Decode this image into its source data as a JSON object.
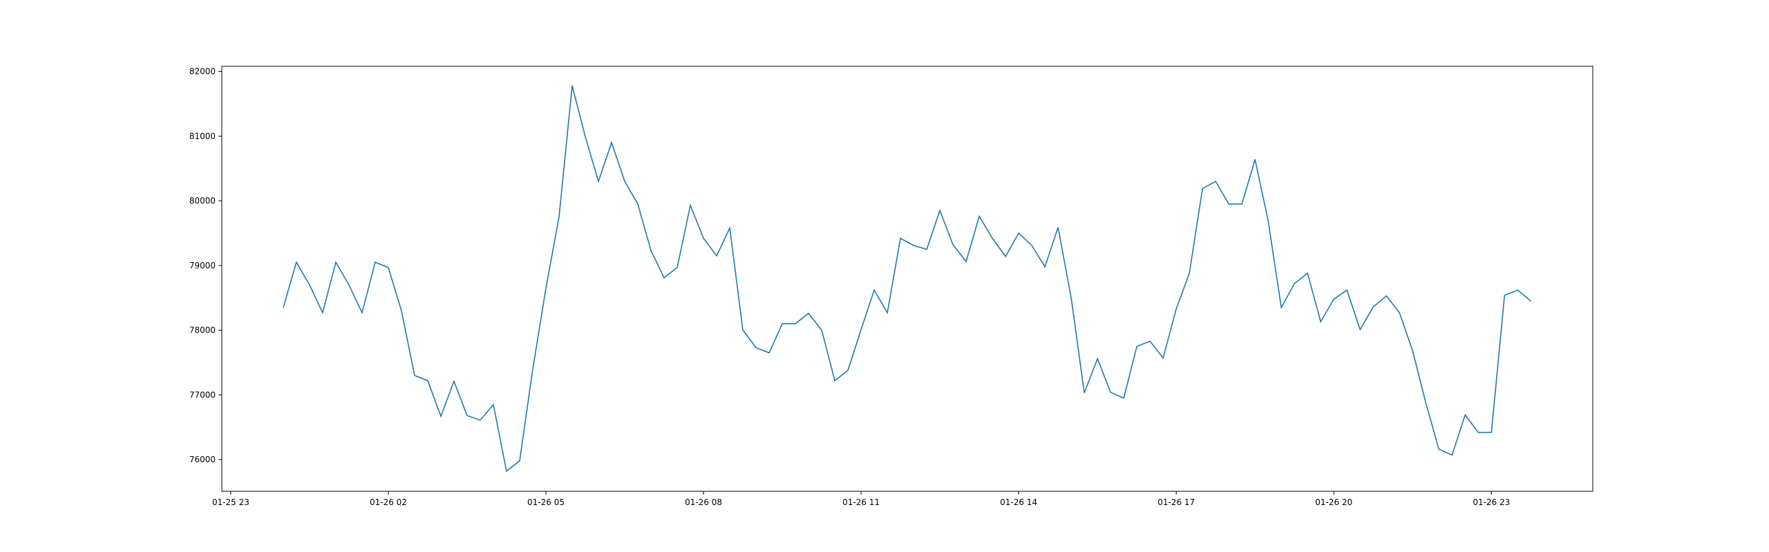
{
  "chart_data": {
    "type": "line",
    "title": "",
    "xlabel": "",
    "ylabel": "",
    "line_color": "#1f77b4",
    "grid": false,
    "legend": false,
    "x_ticks": [
      {
        "value": -1.0,
        "label": "01-25 23"
      },
      {
        "value": 2.0,
        "label": "01-26 02"
      },
      {
        "value": 5.0,
        "label": "01-26 05"
      },
      {
        "value": 8.0,
        "label": "01-26 08"
      },
      {
        "value": 11.0,
        "label": "01-26 11"
      },
      {
        "value": 14.0,
        "label": "01-26 14"
      },
      {
        "value": 17.0,
        "label": "01-26 17"
      },
      {
        "value": 20.0,
        "label": "01-26 20"
      },
      {
        "value": 23.0,
        "label": "01-26 23"
      }
    ],
    "y_ticks": [
      {
        "value": 76000,
        "label": "76000"
      },
      {
        "value": 77000,
        "label": "77000"
      },
      {
        "value": 78000,
        "label": "78000"
      },
      {
        "value": 79000,
        "label": "79000"
      },
      {
        "value": 80000,
        "label": "80000"
      },
      {
        "value": 81000,
        "label": "81000"
      },
      {
        "value": 82000,
        "label": "82000"
      }
    ],
    "xlim": [
      -1.17,
      24.93
    ],
    "ylim": [
      75510,
      82080
    ],
    "series": [
      {
        "x": [
          0.0,
          0.25,
          0.5,
          0.75,
          1.0,
          1.25,
          1.5,
          1.75,
          2.0,
          2.25,
          2.5,
          2.75,
          3.0,
          3.25,
          3.5,
          3.75,
          4.0,
          4.25,
          4.5,
          4.75,
          5.0,
          5.25,
          5.5,
          5.75,
          6.0,
          6.25,
          6.5,
          6.75,
          7.0,
          7.25,
          7.5,
          7.75,
          8.0,
          8.25,
          8.5,
          8.75,
          9.0,
          9.25,
          9.5,
          9.75,
          10.0,
          10.25,
          10.5,
          10.75,
          11.0,
          11.25,
          11.5,
          11.75,
          12.0,
          12.25,
          12.5,
          12.75,
          13.0,
          13.25,
          13.5,
          13.75,
          14.0,
          14.25,
          14.5,
          14.75,
          15.0,
          15.25,
          15.5,
          15.75,
          16.0,
          16.25,
          16.5,
          16.75,
          17.0,
          17.25,
          17.5,
          17.75,
          18.0,
          18.25,
          18.5,
          18.75,
          19.0,
          19.25,
          19.5,
          19.75,
          20.0,
          20.25,
          20.5,
          20.75,
          21.0,
          21.25,
          21.5,
          21.75,
          22.0,
          22.25,
          22.5,
          22.75,
          23.0,
          23.25,
          23.5,
          23.75
        ],
        "y": [
          78350,
          79050,
          78700,
          78270,
          79050,
          78700,
          78270,
          79050,
          78970,
          78300,
          77300,
          77220,
          76670,
          77210,
          76680,
          76610,
          76850,
          75820,
          75980,
          77400,
          78650,
          79750,
          81780,
          80990,
          80300,
          80900,
          80300,
          79950,
          79230,
          78810,
          78970,
          79930,
          79420,
          79150,
          79580,
          78000,
          77730,
          77650,
          78100,
          78100,
          78260,
          78000,
          77220,
          77380,
          78010,
          78620,
          78270,
          79420,
          79310,
          79250,
          79850,
          79320,
          79060,
          79760,
          79420,
          79140,
          79500,
          79310,
          78980,
          79590,
          78500,
          77030,
          77560,
          77040,
          76950,
          77750,
          77830,
          77570,
          78330,
          78880,
          80190,
          80300,
          79950,
          79950,
          80640,
          79690,
          78350,
          78720,
          78880,
          78130,
          78480,
          78620,
          78010,
          78360,
          78530,
          78270,
          77680,
          76880,
          76160,
          76070,
          76690,
          76420,
          76420,
          78540,
          78620,
          78450
        ]
      }
    ]
  }
}
